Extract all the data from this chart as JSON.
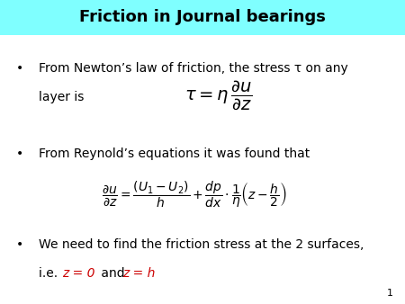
{
  "title": "Friction in Journal bearings",
  "title_bg_color": "#7FFFFF",
  "title_fontsize": 13,
  "title_fontstyle": "bold",
  "body_bg_color": "#FFFFFF",
  "bullet1_line1": "From Newton’s law of friction, the stress τ on any",
  "bullet1_line2": "layer is",
  "eq1": "$\\tau = \\eta\\,\\dfrac{\\partial u}{\\partial z}$",
  "bullet2_text": "From Reynold’s equations it was found that",
  "eq2": "$\\dfrac{\\partial u}{\\partial z} = \\dfrac{(U_1 - U_2)}{h} + \\dfrac{dp}{dx}\\cdot\\dfrac{1}{\\eta}\\left(z - \\dfrac{h}{2}\\right)$",
  "bullet3_text1": "We need to find the friction stress at the 2 surfaces,",
  "bullet3_ie": "i.e. ",
  "bullet3_red1": "z = 0",
  "bullet3_and": " and ",
  "bullet3_red2": "z = h",
  "page_number": "1",
  "text_fontsize": 10,
  "eq1_fontsize": 14,
  "eq2_fontsize": 10,
  "red_color": "#CC0000",
  "black_color": "#000000",
  "bullet": "•"
}
